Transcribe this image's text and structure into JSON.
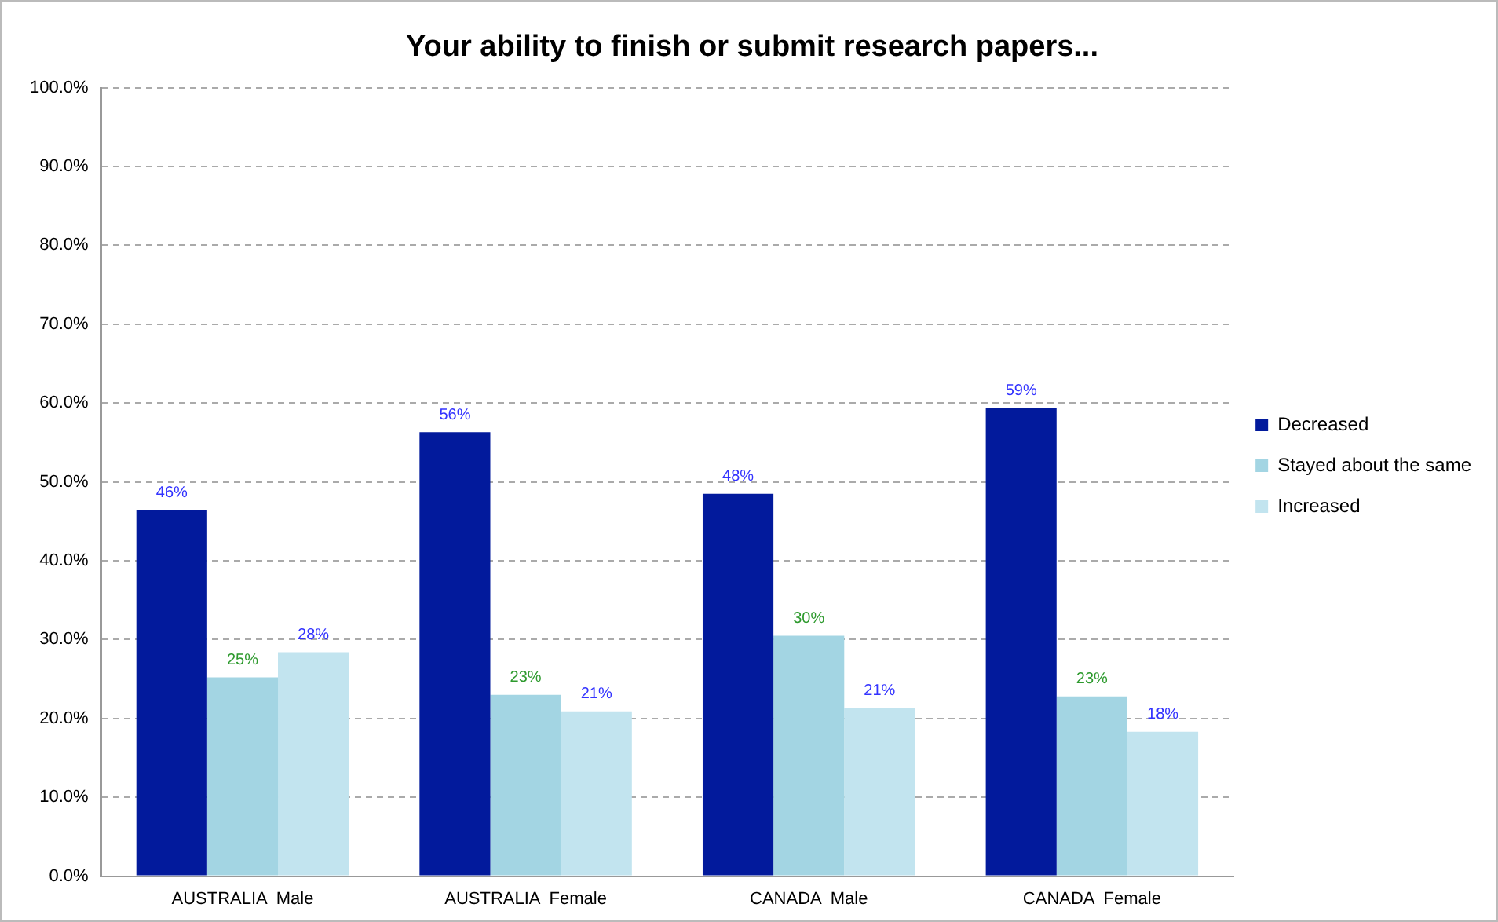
{
  "chart_data": {
    "type": "bar",
    "title": "Your ability to finish or submit research papers...",
    "categories": [
      "AUSTRALIA  Male",
      "AUSTRALIA  Female",
      "CANADA  Male",
      "CANADA  Female"
    ],
    "series": [
      {
        "name": "Decreased",
        "color": "#021a9c",
        "values": [
          46.4,
          56.3,
          48.5,
          59.4
        ],
        "value_labels": [
          "46%",
          "56%",
          "48%",
          "59%"
        ]
      },
      {
        "name": "Stayed about the same",
        "color": "#a3d5e3",
        "values": [
          25.2,
          23.0,
          30.5,
          22.8
        ],
        "value_labels": [
          "25%",
          "23%",
          "30%",
          "23%"
        ]
      },
      {
        "name": "Increased",
        "color": "#c2e4ef",
        "values": [
          28.4,
          20.9,
          21.3,
          18.3
        ],
        "value_labels": [
          "28%",
          "21%",
          "21%",
          "18%"
        ]
      }
    ],
    "ylim": [
      0,
      100
    ],
    "yticks": [
      {
        "value": 0,
        "label": "0.0%"
      },
      {
        "value": 10,
        "label": "10.0%"
      },
      {
        "value": 20,
        "label": "20.0%"
      },
      {
        "value": 30,
        "label": "30.0%"
      },
      {
        "value": 40,
        "label": "40.0%"
      },
      {
        "value": 50,
        "label": "50.0%"
      },
      {
        "value": 60,
        "label": "60.0%"
      },
      {
        "value": 70,
        "label": "70.0%"
      },
      {
        "value": 80,
        "label": "80.0%"
      },
      {
        "value": 90,
        "label": "90.0%"
      },
      {
        "value": 100,
        "label": "100.0%"
      }
    ],
    "grid": "y",
    "legend": "right"
  }
}
